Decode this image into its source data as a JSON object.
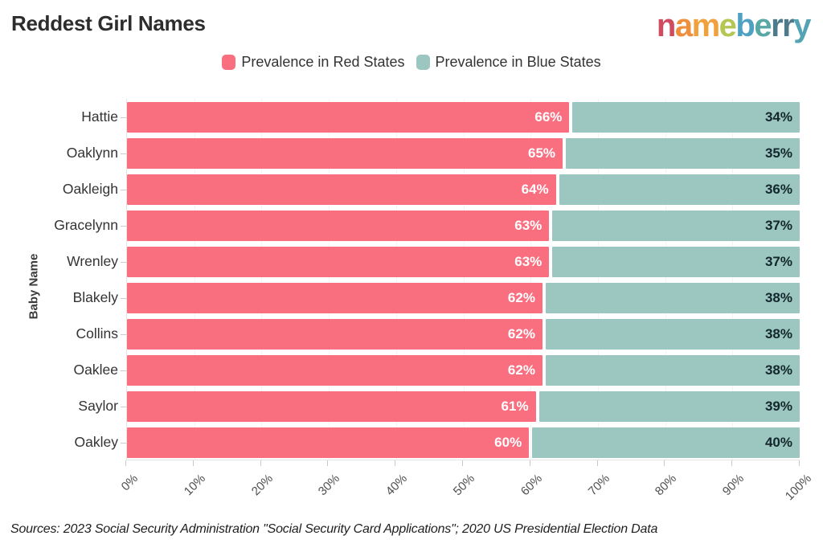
{
  "title": "Reddest Girl Names",
  "logo": {
    "text": "nameberry",
    "letters": [
      {
        "ch": "n",
        "color": "#d14b5f"
      },
      {
        "ch": "a",
        "color": "#ef8e3b"
      },
      {
        "ch": "m",
        "color": "#f0a03c"
      },
      {
        "ch": "e",
        "color": "#b5c653"
      },
      {
        "ch": "b",
        "color": "#4fa1c2"
      },
      {
        "ch": "e",
        "color": "#58a8a6"
      },
      {
        "ch": "r",
        "color": "#4e7a89"
      },
      {
        "ch": "r",
        "color": "#4e7a89"
      },
      {
        "ch": "y",
        "color": "#53a3b3"
      }
    ]
  },
  "legend": {
    "items": [
      {
        "label": "Prevalence in Red States",
        "color": "#f96f80"
      },
      {
        "label": "Prevalence in Blue States",
        "color": "#9bc7c0"
      }
    ]
  },
  "chart_data": {
    "type": "bar",
    "orientation": "horizontal",
    "stacked": true,
    "title": "Reddest Girl Names",
    "ylabel": "Baby Name",
    "xlabel": "",
    "xlim": [
      0,
      100
    ],
    "grid": "faint-vertical",
    "legend_position": "top-center",
    "categories": [
      "Hattie",
      "Oaklynn",
      "Oakleigh",
      "Gracelynn",
      "Wrenley",
      "Blakely",
      "Collins",
      "Oaklee",
      "Saylor",
      "Oakley"
    ],
    "series": [
      {
        "name": "Prevalence in Red States",
        "color": "#f96f80",
        "label_color": "#ffffff",
        "values": [
          66,
          65,
          64,
          63,
          63,
          62,
          62,
          62,
          61,
          60
        ]
      },
      {
        "name": "Prevalence in Blue States",
        "color": "#9bc7c0",
        "label_color": "#13262c",
        "values": [
          34,
          35,
          36,
          37,
          37,
          38,
          38,
          38,
          39,
          40
        ]
      }
    ],
    "value_suffix": "%",
    "x_tick_labels": [
      "0%",
      "10%",
      "20%",
      "30%",
      "40%",
      "50%",
      "60%",
      "70%",
      "80%",
      "90%",
      "100%"
    ]
  },
  "source": "Sources: 2023 Social Security Administration \"Social Security Card Applications\"; 2020 US Presidential Election Data"
}
